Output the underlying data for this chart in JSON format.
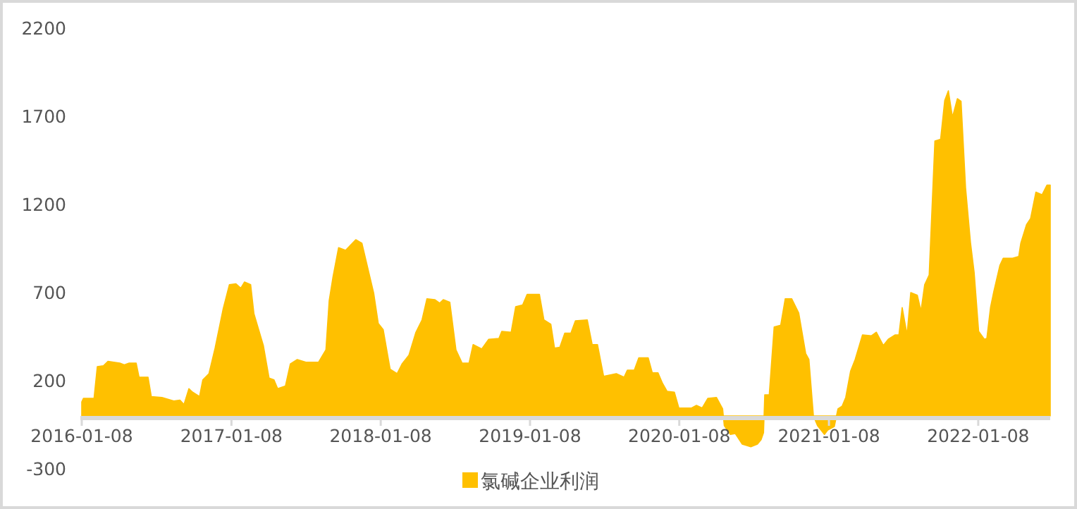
{
  "chart_data": {
    "type": "area",
    "legend": "bottom",
    "grid": false,
    "xlim": [
      "2016-01-08",
      "2022-07-03"
    ],
    "xticks": [
      "2016-01-08",
      "2017-01-08",
      "2018-01-08",
      "2019-01-08",
      "2020-01-08",
      "2021-01-08",
      "2022-01-08"
    ],
    "ylim": [
      -300,
      2200
    ],
    "yticks": [
      -300,
      200,
      700,
      1200,
      1700,
      2200
    ],
    "series": [
      {
        "name": "氯碱企业利润",
        "color": "#ffc000",
        "x": [
          "2016-01-08",
          "2016-01-12",
          "2016-02-07",
          "2016-02-15",
          "2016-03-01",
          "2016-03-12",
          "2016-04-10",
          "2016-04-21",
          "2016-05-03",
          "2016-05-20",
          "2016-05-27",
          "2016-06-18",
          "2016-06-26",
          "2016-07-22",
          "2016-08-20",
          "2016-09-04",
          "2016-09-14",
          "2016-09-26",
          "2016-10-05",
          "2016-10-22",
          "2016-10-30",
          "2016-11-14",
          "2016-11-29",
          "2016-12-19",
          "2017-01-03",
          "2017-01-19",
          "2017-01-31",
          "2017-02-09",
          "2017-02-24",
          "2017-03-04",
          "2017-03-27",
          "2017-04-10",
          "2017-04-22",
          "2017-05-01",
          "2017-05-20",
          "2017-06-01",
          "2017-06-18",
          "2017-07-09",
          "2017-08-09",
          "2017-08-18",
          "2017-08-27",
          "2017-09-04",
          "2017-09-13",
          "2017-09-27",
          "2017-10-14",
          "2017-11-08",
          "2017-11-23",
          "2017-12-22",
          "2018-01-02",
          "2018-01-14",
          "2018-01-31",
          "2018-02-17",
          "2018-03-01",
          "2018-03-18",
          "2018-04-04",
          "2018-04-19",
          "2018-05-01",
          "2018-05-20",
          "2018-06-01",
          "2018-06-10",
          "2018-06-26",
          "2018-07-11",
          "2018-07-26",
          "2018-08-12",
          "2018-08-22",
          "2018-09-12",
          "2018-09-29",
          "2018-10-24",
          "2018-10-31",
          "2018-11-23",
          "2018-12-04",
          "2018-12-21",
          "2019-01-01",
          "2019-01-31",
          "2019-02-11",
          "2019-02-28",
          "2019-03-09",
          "2019-03-22",
          "2019-04-03",
          "2019-04-18",
          "2019-04-29",
          "2019-05-28",
          "2019-06-09",
          "2019-06-22",
          "2019-07-07",
          "2019-08-07",
          "2019-08-26",
          "2019-09-03",
          "2019-09-20",
          "2019-10-01",
          "2019-10-24",
          "2019-11-03",
          "2019-11-17",
          "2019-11-28",
          "2019-12-09",
          "2019-12-27",
          "2020-01-07",
          "2020-02-07",
          "2020-02-19",
          "2020-03-04",
          "2020-03-18",
          "2020-04-08",
          "2020-04-23",
          "2020-04-27",
          "2020-05-12",
          "2020-05-24",
          "2020-06-10",
          "2020-07-01",
          "2020-07-17",
          "2020-07-26",
          "2020-08-01",
          "2020-08-04",
          "2020-08-15",
          "2020-08-27",
          "2020-09-12",
          "2020-09-23",
          "2020-10-09",
          "2020-10-26",
          "2020-11-12",
          "2020-11-20",
          "2020-12-01",
          "2020-12-11",
          "2020-12-28",
          "2021-01-05",
          "2021-01-21",
          "2021-01-30",
          "2021-02-09",
          "2021-02-18",
          "2021-03-02",
          "2021-03-13",
          "2021-03-31",
          "2021-04-22",
          "2021-05-04",
          "2021-05-21",
          "2021-06-02",
          "2021-06-19",
          "2021-06-28",
          "2021-07-06",
          "2021-07-18",
          "2021-07-27",
          "2021-08-12",
          "2021-08-21",
          "2021-08-30",
          "2021-09-10",
          "2021-09-24",
          "2021-10-08",
          "2021-10-18",
          "2021-10-27",
          "2021-11-06",
          "2021-11-18",
          "2021-11-27",
          "2021-12-08",
          "2021-12-20",
          "2021-12-29",
          "2022-01-09",
          "2022-01-23",
          "2022-01-29",
          "2022-02-07",
          "2022-02-15",
          "2022-03-02",
          "2022-03-10",
          "2022-04-02",
          "2022-04-17",
          "2022-04-22",
          "2022-05-06",
          "2022-05-16",
          "2022-05-29",
          "2022-06-13",
          "2022-06-25",
          "2022-07-03"
        ],
        "values": [
          80,
          100,
          100,
          280,
          285,
          310,
          300,
          290,
          300,
          300,
          220,
          220,
          110,
          105,
          85,
          90,
          65,
          155,
          135,
          110,
          205,
          240,
          385,
          610,
          745,
          750,
          725,
          760,
          745,
          580,
          400,
          215,
          205,
          155,
          170,
          295,
          320,
          305,
          305,
          340,
          375,
          655,
          785,
          955,
          940,
          1000,
          980,
          695,
          525,
          490,
          265,
          240,
          295,
          345,
          475,
          545,
          665,
          660,
          640,
          660,
          645,
          375,
          300,
          300,
          405,
          380,
          435,
          440,
          480,
          475,
          620,
          630,
          690,
          690,
          545,
          520,
          385,
          390,
          470,
          470,
          540,
          545,
          405,
          405,
          225,
          240,
          220,
          260,
          260,
          330,
          330,
          245,
          245,
          185,
          140,
          135,
          45,
          45,
          60,
          45,
          100,
          105,
          40,
          -55,
          -105,
          -100,
          -160,
          -175,
          -160,
          -135,
          -95,
          120,
          120,
          505,
          515,
          665,
          665,
          585,
          355,
          320,
          0,
          -55,
          -105,
          -80,
          -60,
          40,
          55,
          105,
          255,
          320,
          460,
          455,
          475,
          400,
          435,
          460,
          460,
          615,
          460,
          700,
          685,
          595,
          745,
          800,
          1560,
          1570,
          1790,
          1845,
          1695,
          1800,
          1785,
          1295,
          985,
          815,
          480,
          435,
          440,
          615,
          705,
          855,
          895,
          895,
          905,
          980,
          1085,
          1120,
          1270,
          1255,
          1310,
          1310
        ]
      }
    ]
  }
}
